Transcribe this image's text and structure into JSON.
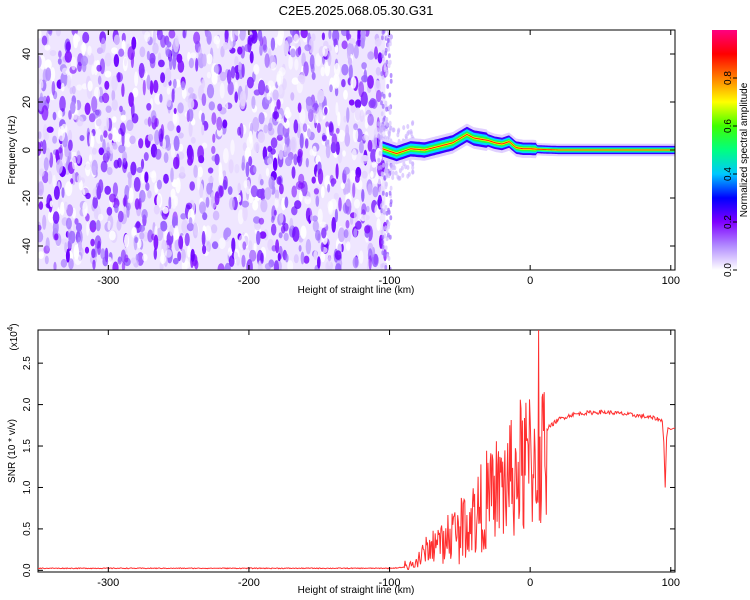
{
  "figure": {
    "title": "C2E5.2025.068.05.30.G31"
  },
  "chart_data": [
    {
      "type": "heatmap",
      "xlabel": "Height of straight line (km)",
      "ylabel": "Frequency (Hz)",
      "xlim": [
        -350,
        103
      ],
      "ylim": [
        -50,
        50
      ],
      "xticks": [
        -300,
        -200,
        -100,
        0,
        100
      ],
      "yticks": [
        -40,
        -20,
        0,
        20,
        40
      ],
      "noise_region_x": [
        -350,
        -103
      ],
      "signal_band": {
        "x": [
          -105,
          -95,
          -85,
          -75,
          -65,
          -55,
          -45,
          -40,
          -35,
          -30,
          -25,
          -20,
          -15,
          -10,
          -5,
          0,
          10,
          20,
          30,
          40,
          60,
          80,
          100,
          103
        ],
        "center_hz": [
          0.5,
          -1.5,
          0.5,
          0.0,
          1.5,
          3.0,
          6.5,
          5.0,
          4.5,
          4.0,
          3.0,
          2.5,
          3.5,
          1.0,
          0.5,
          0.5,
          0.2,
          0.0,
          0.0,
          0.0,
          0.0,
          0.0,
          0.0,
          0.0
        ]
      }
    },
    {
      "type": "colorbar",
      "label": "Normalized spectral amplitude",
      "range": [
        0.0,
        1.0
      ],
      "ticks": [
        "0.0",
        "0.2",
        "0.4",
        "0.6",
        "0.8"
      ],
      "tick_values": [
        0.0,
        0.2,
        0.4,
        0.6,
        0.8
      ],
      "colors": [
        "#ffffff",
        "#b28cff",
        "#7f00ff",
        "#0000ff",
        "#00c8ff",
        "#00ff80",
        "#40ff00",
        "#ffff00",
        "#ff8000",
        "#ff0000",
        "#ff0080"
      ]
    },
    {
      "type": "line",
      "xlabel": "Height of straight line (km)",
      "ylabel": "SNR (10 * v/v)",
      "scale_label": "(x10",
      "scale_exponent": "4",
      "scale_suffix": ")",
      "xlim": [
        -350,
        103
      ],
      "ylim": [
        -0.02,
        2.9
      ],
      "xticks": [
        -300,
        -200,
        -100,
        0,
        100
      ],
      "yticks": [
        "0.0",
        "0.5",
        "1.0",
        "1.5",
        "2.0",
        "2.5"
      ],
      "ytick_values": [
        0.0,
        0.5,
        1.0,
        1.5,
        2.0,
        2.5
      ],
      "color": "#ff3030",
      "x": [
        -350,
        -100,
        -90,
        -85,
        -80,
        -75,
        -70,
        -65,
        -60,
        -55,
        -50,
        -45,
        -40,
        -35,
        -30,
        -25,
        -20,
        -15,
        -10,
        -5,
        0,
        5,
        10,
        15,
        20,
        30,
        40,
        50,
        60,
        70,
        80,
        90,
        94,
        95,
        96,
        97,
        98,
        100,
        103
      ],
      "y": [
        0.02,
        0.02,
        0.03,
        0.05,
        0.12,
        0.25,
        0.35,
        0.42,
        0.48,
        0.55,
        0.62,
        0.72,
        0.8,
        0.9,
        1.0,
        1.1,
        1.2,
        1.3,
        1.4,
        1.5,
        1.55,
        1.6,
        1.68,
        1.75,
        1.82,
        1.88,
        1.9,
        1.91,
        1.9,
        1.88,
        1.86,
        1.83,
        1.8,
        1.55,
        1.0,
        1.6,
        1.72,
        1.7,
        1.72
      ],
      "spike": {
        "x": 6,
        "y": 2.9
      }
    }
  ]
}
